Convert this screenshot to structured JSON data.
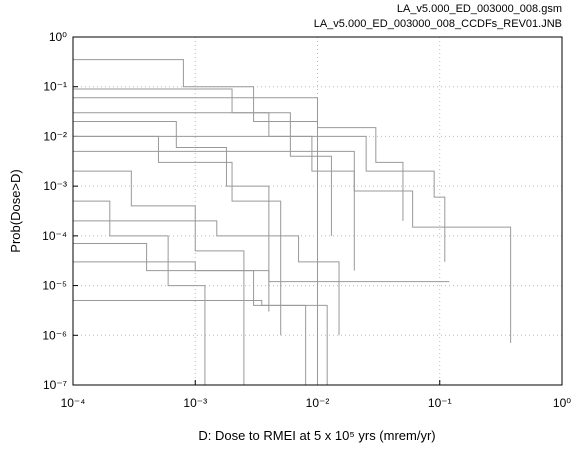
{
  "chart_data": {
    "type": "line",
    "annotations": [
      "LA_v5.000_ED_003000_008.gsm",
      "LA_v5.000_ED_003000_008_CCDFs_REV01.JNB"
    ],
    "x_label": "D: Dose to RMEI at 5 x 10⁵ yrs (mrem/yr)",
    "y_label": "Prob(Dose>D)",
    "log_x": true,
    "log_y": true,
    "grid": true,
    "xlim": [
      0.0001,
      1
    ],
    "ylim": [
      1e-07,
      1
    ],
    "xticks": [
      {
        "value": 0.0001,
        "label": "10⁻⁴"
      },
      {
        "value": 0.001,
        "label": "10⁻³"
      },
      {
        "value": 0.01,
        "label": "10⁻²"
      },
      {
        "value": 0.1,
        "label": "10⁻¹"
      },
      {
        "value": 1,
        "label": "10⁰"
      }
    ],
    "yticks": [
      {
        "value": 1e-07,
        "label": "10⁻⁷"
      },
      {
        "value": 1e-06,
        "label": "10⁻⁶"
      },
      {
        "value": 1e-05,
        "label": "10⁻⁵"
      },
      {
        "value": 0.0001,
        "label": "10⁻⁴"
      },
      {
        "value": 0.001,
        "label": "10⁻³"
      },
      {
        "value": 0.01,
        "label": "10⁻²"
      },
      {
        "value": 0.1,
        "label": "10⁻¹"
      },
      {
        "value": 1,
        "label": "10⁰"
      }
    ],
    "series": [
      {
        "color": "#999999",
        "x": [
          0.0001,
          0.0008,
          0.0008,
          0.003,
          0.003,
          0.01,
          0.01
        ],
        "values": [
          0.35,
          0.35,
          0.1,
          0.1,
          0.02,
          0.02,
          1e-07
        ]
      },
      {
        "color": "#999999",
        "x": [
          0.0001,
          0.002,
          0.002,
          0.006,
          0.006,
          0.013,
          0.013
        ],
        "values": [
          0.09,
          0.09,
          0.03,
          0.03,
          0.004,
          0.004,
          0.0001
        ]
      },
      {
        "color": "#999999",
        "x": [
          0.0001,
          0.02,
          0.02,
          0.06,
          0.06,
          0.38,
          0.38
        ],
        "values": [
          0.005,
          0.005,
          0.0008,
          0.0008,
          0.00015,
          0.00015,
          7e-07
        ]
      },
      {
        "color": "#999999",
        "x": [
          0.0001,
          0.001,
          0.001,
          0.004,
          0.004,
          0.12
        ],
        "values": [
          3e-05,
          3e-05,
          2e-05,
          2e-05,
          1.2e-05,
          1.2e-05
        ]
      },
      {
        "color": "#999999",
        "x": [
          0.0001,
          0.0005,
          0.0005,
          0.002,
          0.002,
          0.005,
          0.005
        ],
        "values": [
          0.01,
          0.01,
          0.003,
          0.003,
          0.0005,
          0.0005,
          1e-06
        ]
      },
      {
        "color": "#999999",
        "x": [
          0.0001,
          0.0003,
          0.0003,
          0.001,
          0.001,
          0.0025,
          0.0025
        ],
        "values": [
          0.002,
          0.002,
          0.0004,
          0.0004,
          5e-05,
          5e-05,
          1e-07
        ]
      },
      {
        "color": "#999999",
        "x": [
          0.0001,
          0.004,
          0.004,
          0.009,
          0.009,
          0.02,
          0.02
        ],
        "values": [
          0.03,
          0.03,
          0.01,
          0.01,
          0.002,
          0.002,
          2e-05
        ]
      },
      {
        "color": "#999999",
        "x": [
          0.0001,
          0.0015,
          0.0015,
          0.007,
          0.007,
          0.015,
          0.015
        ],
        "values": [
          0.0002,
          0.0002,
          0.0001,
          0.0001,
          3e-05,
          3e-05,
          1e-06
        ]
      },
      {
        "color": "#999999",
        "x": [
          0.0001,
          0.0002,
          0.0002,
          0.0006,
          0.0006,
          0.0012,
          0.0012
        ],
        "values": [
          0.0005,
          0.0005,
          0.0001,
          0.0001,
          1e-05,
          1e-05,
          1e-07
        ]
      },
      {
        "color": "#999999",
        "x": [
          0.0001,
          0.01,
          0.01,
          0.03,
          0.03,
          0.05,
          0.05
        ],
        "values": [
          0.06,
          0.06,
          0.015,
          0.015,
          0.003,
          0.003,
          0.0002
        ]
      },
      {
        "color": "#999999",
        "x": [
          0.0001,
          0.0035,
          0.0035,
          0.012,
          0.012
        ],
        "values": [
          5e-06,
          5e-06,
          4e-06,
          4e-06,
          1e-07
        ]
      },
      {
        "color": "#999999",
        "x": [
          0.0001,
          0.0007,
          0.0007,
          0.0018,
          0.0018,
          0.004,
          0.004
        ],
        "values": [
          0.02,
          0.02,
          0.006,
          0.006,
          0.001,
          0.001,
          3e-06
        ]
      },
      {
        "color": "#999999",
        "x": [
          0.0001,
          0.025,
          0.025,
          0.09,
          0.09,
          0.11,
          0.11
        ],
        "values": [
          0.01,
          0.01,
          0.002,
          0.002,
          0.0006,
          0.0006,
          3e-05
        ]
      },
      {
        "color": "#999999",
        "x": [
          0.0001,
          0.0004,
          0.0004,
          0.003,
          0.003,
          0.008,
          0.008
        ],
        "values": [
          7e-05,
          7e-05,
          2e-05,
          2e-05,
          4e-06,
          4e-06,
          1e-07
        ]
      }
    ]
  }
}
